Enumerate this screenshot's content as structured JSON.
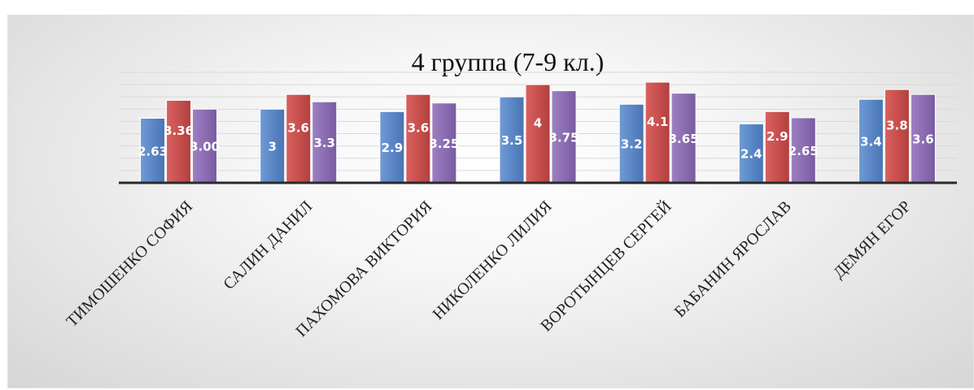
{
  "chart_data": {
    "type": "bar",
    "title": "4 группа (7-9 кл.)",
    "categories": [
      "ТИМОШЕНКО СОФИЯ",
      "САЛИН ДАНИЛ",
      "ПАХОМОВА ВИКТОРИЯ",
      "НИКОЛЕНКО ЛИЛИЯ",
      "ВОРОТЫНЦЕВ СЕРГЕЙ",
      "БАБАНИН ЯРОСЛАВ",
      "ДЕМЯН ЕГОР"
    ],
    "series": [
      {
        "color": "#5b87c6",
        "values": [
          2.63,
          3,
          2.9,
          3.5,
          3.2,
          2.4,
          3.4
        ],
        "labels": [
          "2.63",
          "3",
          "2.9",
          "3.5",
          "3.2",
          "2.4",
          "3.4"
        ]
      },
      {
        "color": "#c8504e",
        "values": [
          3.36,
          3.6,
          3.6,
          4,
          4.1,
          2.9,
          3.8
        ],
        "labels": [
          "3.36",
          "3.6",
          "3.6",
          "4",
          "4.1",
          "2.9",
          "3.8"
        ]
      },
      {
        "color": "#8c6db2",
        "values": [
          3.0,
          3.3,
          3.25,
          3.75,
          3.65,
          2.65,
          3.6
        ],
        "labels": [
          "3.00",
          "3.3",
          "3.25",
          "3.75",
          "3.65",
          "2.65",
          "3.6"
        ]
      }
    ],
    "xlabel": "",
    "ylabel": "",
    "ylim": [
      0,
      4.5
    ],
    "grid": true,
    "legend": "none"
  }
}
